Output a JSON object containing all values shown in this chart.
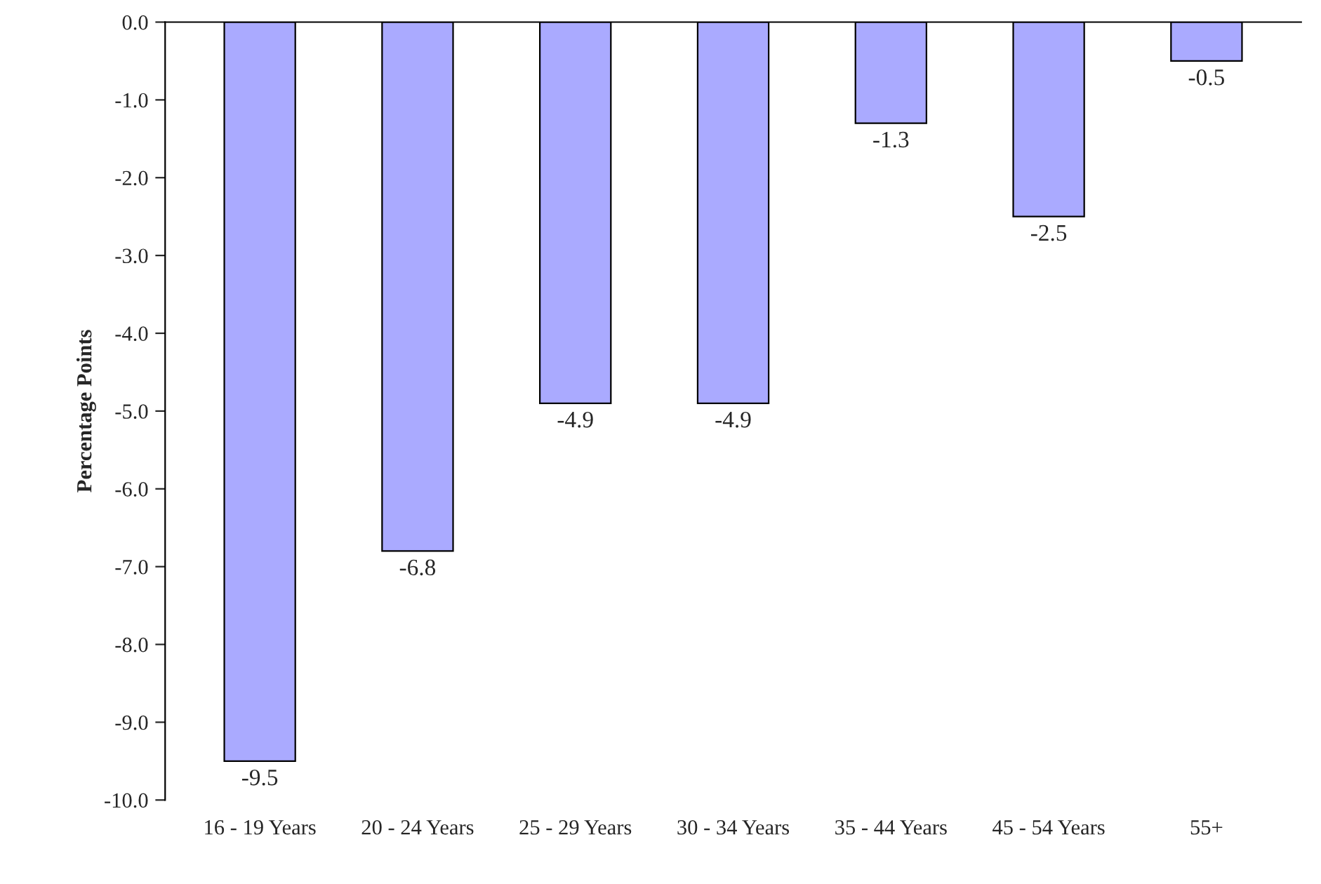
{
  "chart_data": {
    "type": "bar",
    "ylabel": "Percentage Points",
    "categories": [
      "16 - 19 Years",
      "20 - 24 Years",
      "25 - 29 Years",
      "30 - 34 Years",
      "35 - 44 Years",
      "45 - 54 Years",
      "55+"
    ],
    "values": [
      -9.5,
      -6.8,
      -4.9,
      -4.9,
      -1.3,
      -2.5,
      -0.5
    ],
    "color": "#aaaaff",
    "ylim": [
      -10,
      0
    ],
    "yticks": [
      {
        "value": 0,
        "label": "0.0"
      },
      {
        "value": -1,
        "label": "-1.0"
      },
      {
        "value": -2,
        "label": "-2.0"
      },
      {
        "value": -3,
        "label": "-3.0"
      },
      {
        "value": -4,
        "label": "-4.0"
      },
      {
        "value": -5,
        "label": "-5.0"
      },
      {
        "value": -6,
        "label": "-6.0"
      },
      {
        "value": -7,
        "label": "-7.0"
      },
      {
        "value": -8,
        "label": "-8.0"
      },
      {
        "value": -9,
        "label": "-9.0"
      },
      {
        "value": -10,
        "label": "-10.0"
      }
    ],
    "data_labels": true,
    "grid": false
  }
}
